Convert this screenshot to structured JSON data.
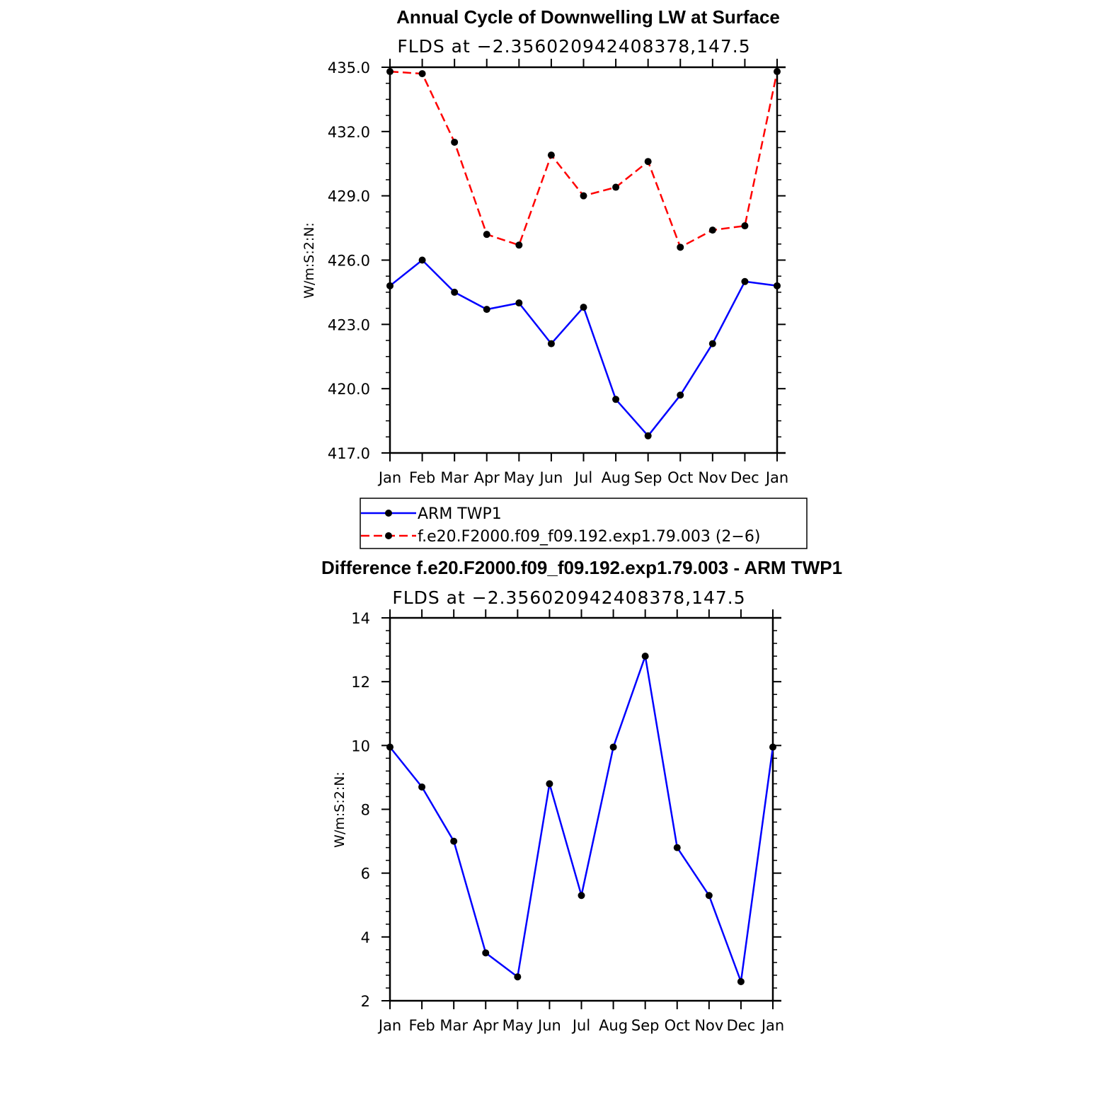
{
  "chart_data": [
    {
      "type": "line",
      "title": "Annual Cycle of Downwelling LW at Surface",
      "subtitle": "FLDS at −2.356020942408378,147.5",
      "ylabel": "W/m:S:2:N:",
      "categories": [
        "Jan",
        "Feb",
        "Mar",
        "Apr",
        "May",
        "Jun",
        "Jul",
        "Aug",
        "Sep",
        "Oct",
        "Nov",
        "Dec",
        "Jan"
      ],
      "ylim": [
        417.0,
        435.0
      ],
      "yticks": [
        "417.0",
        "420.0",
        "423.0",
        "426.0",
        "429.0",
        "432.0",
        "435.0"
      ],
      "series": [
        {
          "name": "ARM  TWP1",
          "color": "#0000ff",
          "dash": "solid",
          "values": [
            424.8,
            426.0,
            424.5,
            423.7,
            424.0,
            422.1,
            423.8,
            419.5,
            417.8,
            419.7,
            422.1,
            425.0,
            424.8
          ]
        },
        {
          "name": "f.e20.F2000.f09_f09.192.exp1.79.003 (2−6)",
          "color": "#ff0000",
          "dash": "dashed",
          "values": [
            434.8,
            434.7,
            431.5,
            427.2,
            426.7,
            430.9,
            429.0,
            429.4,
            430.6,
            426.6,
            427.4,
            427.6,
            434.8
          ]
        }
      ]
    },
    {
      "type": "line",
      "title": "Difference f.e20.F2000.f09_f09.192.exp1.79.003 - ARM TWP1",
      "subtitle": "FLDS at −2.356020942408378,147.5",
      "ylabel": "W/m:S:2:N:",
      "categories": [
        "Jan",
        "Feb",
        "Mar",
        "Apr",
        "May",
        "Jun",
        "Jul",
        "Aug",
        "Sep",
        "Oct",
        "Nov",
        "Dec",
        "Jan"
      ],
      "ylim": [
        2,
        14
      ],
      "yticks": [
        "2",
        "4",
        "6",
        "8",
        "10",
        "12",
        "14"
      ],
      "series": [
        {
          "color": "#0000ff",
          "dash": "solid",
          "values": [
            9.95,
            8.7,
            7.0,
            3.5,
            2.75,
            8.8,
            5.3,
            9.95,
            12.8,
            6.8,
            5.3,
            2.6,
            9.95
          ]
        }
      ]
    }
  ]
}
